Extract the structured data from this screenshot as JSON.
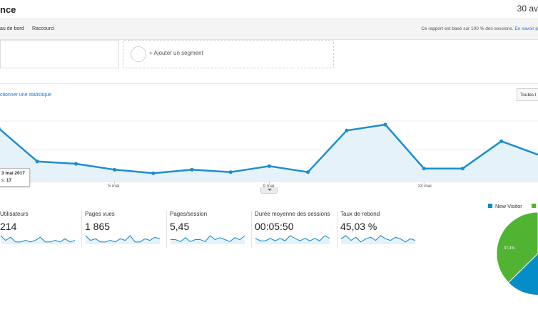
{
  "header": {
    "title": "nce",
    "date_range": "30 av"
  },
  "toolbar": {
    "items": [
      "au de bord",
      "Raccourci"
    ],
    "sampling_text": "Ce rapport est basé sur 100 % des sessions.",
    "sampling_link": "En savoir p"
  },
  "segments": {
    "add_label": "+ Ajouter un segment"
  },
  "chart_controls": {
    "select_stat": "ctionner une statistique",
    "all_button": "Toutes l"
  },
  "chart_data": {
    "type": "area",
    "series": [
      {
        "name": "Sessions",
        "values": [
          45,
          17,
          15,
          10,
          7,
          10,
          8,
          13,
          8,
          43,
          48,
          11,
          11,
          34,
          22
        ]
      }
    ],
    "x_tick_labels": [
      "5 mai",
      "9 mai",
      "13 mai"
    ],
    "x_tick_indices": [
      3,
      7,
      11
    ],
    "ylim": [
      0,
      60
    ],
    "line_color": "#1b8ece",
    "fill_color": "#e6f2f9",
    "gridlines": true
  },
  "tooltip": {
    "date": "3 mai 2017",
    "value_label": "s:",
    "value": "17"
  },
  "metrics": [
    {
      "label": "Utilisateurs",
      "value": "214",
      "spark": [
        5,
        2,
        4,
        1,
        1,
        2,
        1,
        2,
        4,
        1,
        1,
        2,
        1,
        3,
        1,
        2
      ]
    },
    {
      "label": "Pages vues",
      "value": "1 865",
      "spark": [
        5,
        2,
        3,
        1,
        1,
        2,
        1,
        3,
        2,
        5,
        1,
        1,
        3,
        2,
        4,
        3
      ]
    },
    {
      "label": "Pages/session",
      "value": "5,45",
      "spark": [
        2,
        2,
        1,
        3,
        1,
        2,
        2,
        1,
        4,
        2,
        3,
        2,
        1,
        3,
        2,
        4
      ]
    },
    {
      "label": "Durée moyenne des sessions",
      "value": "00:05:50",
      "spark": [
        2,
        1,
        1,
        2,
        1,
        2,
        1,
        3,
        2,
        1,
        2,
        1,
        2,
        1,
        3,
        2
      ]
    },
    {
      "label": "Taux de rebond",
      "value": "45,03 %",
      "spark": [
        3,
        5,
        2,
        4,
        1,
        3,
        4,
        2,
        5,
        3,
        2,
        4,
        3,
        1,
        3,
        2
      ]
    }
  ],
  "legend": {
    "new_visitor_label": "New Visitor",
    "new_visitor_color": "#058dc7",
    "returning_color": "#50b432"
  },
  "pie": {
    "green_pct_label": "37,4%",
    "new_visitor_pct": 62.6,
    "returning_pct": 37.4
  }
}
